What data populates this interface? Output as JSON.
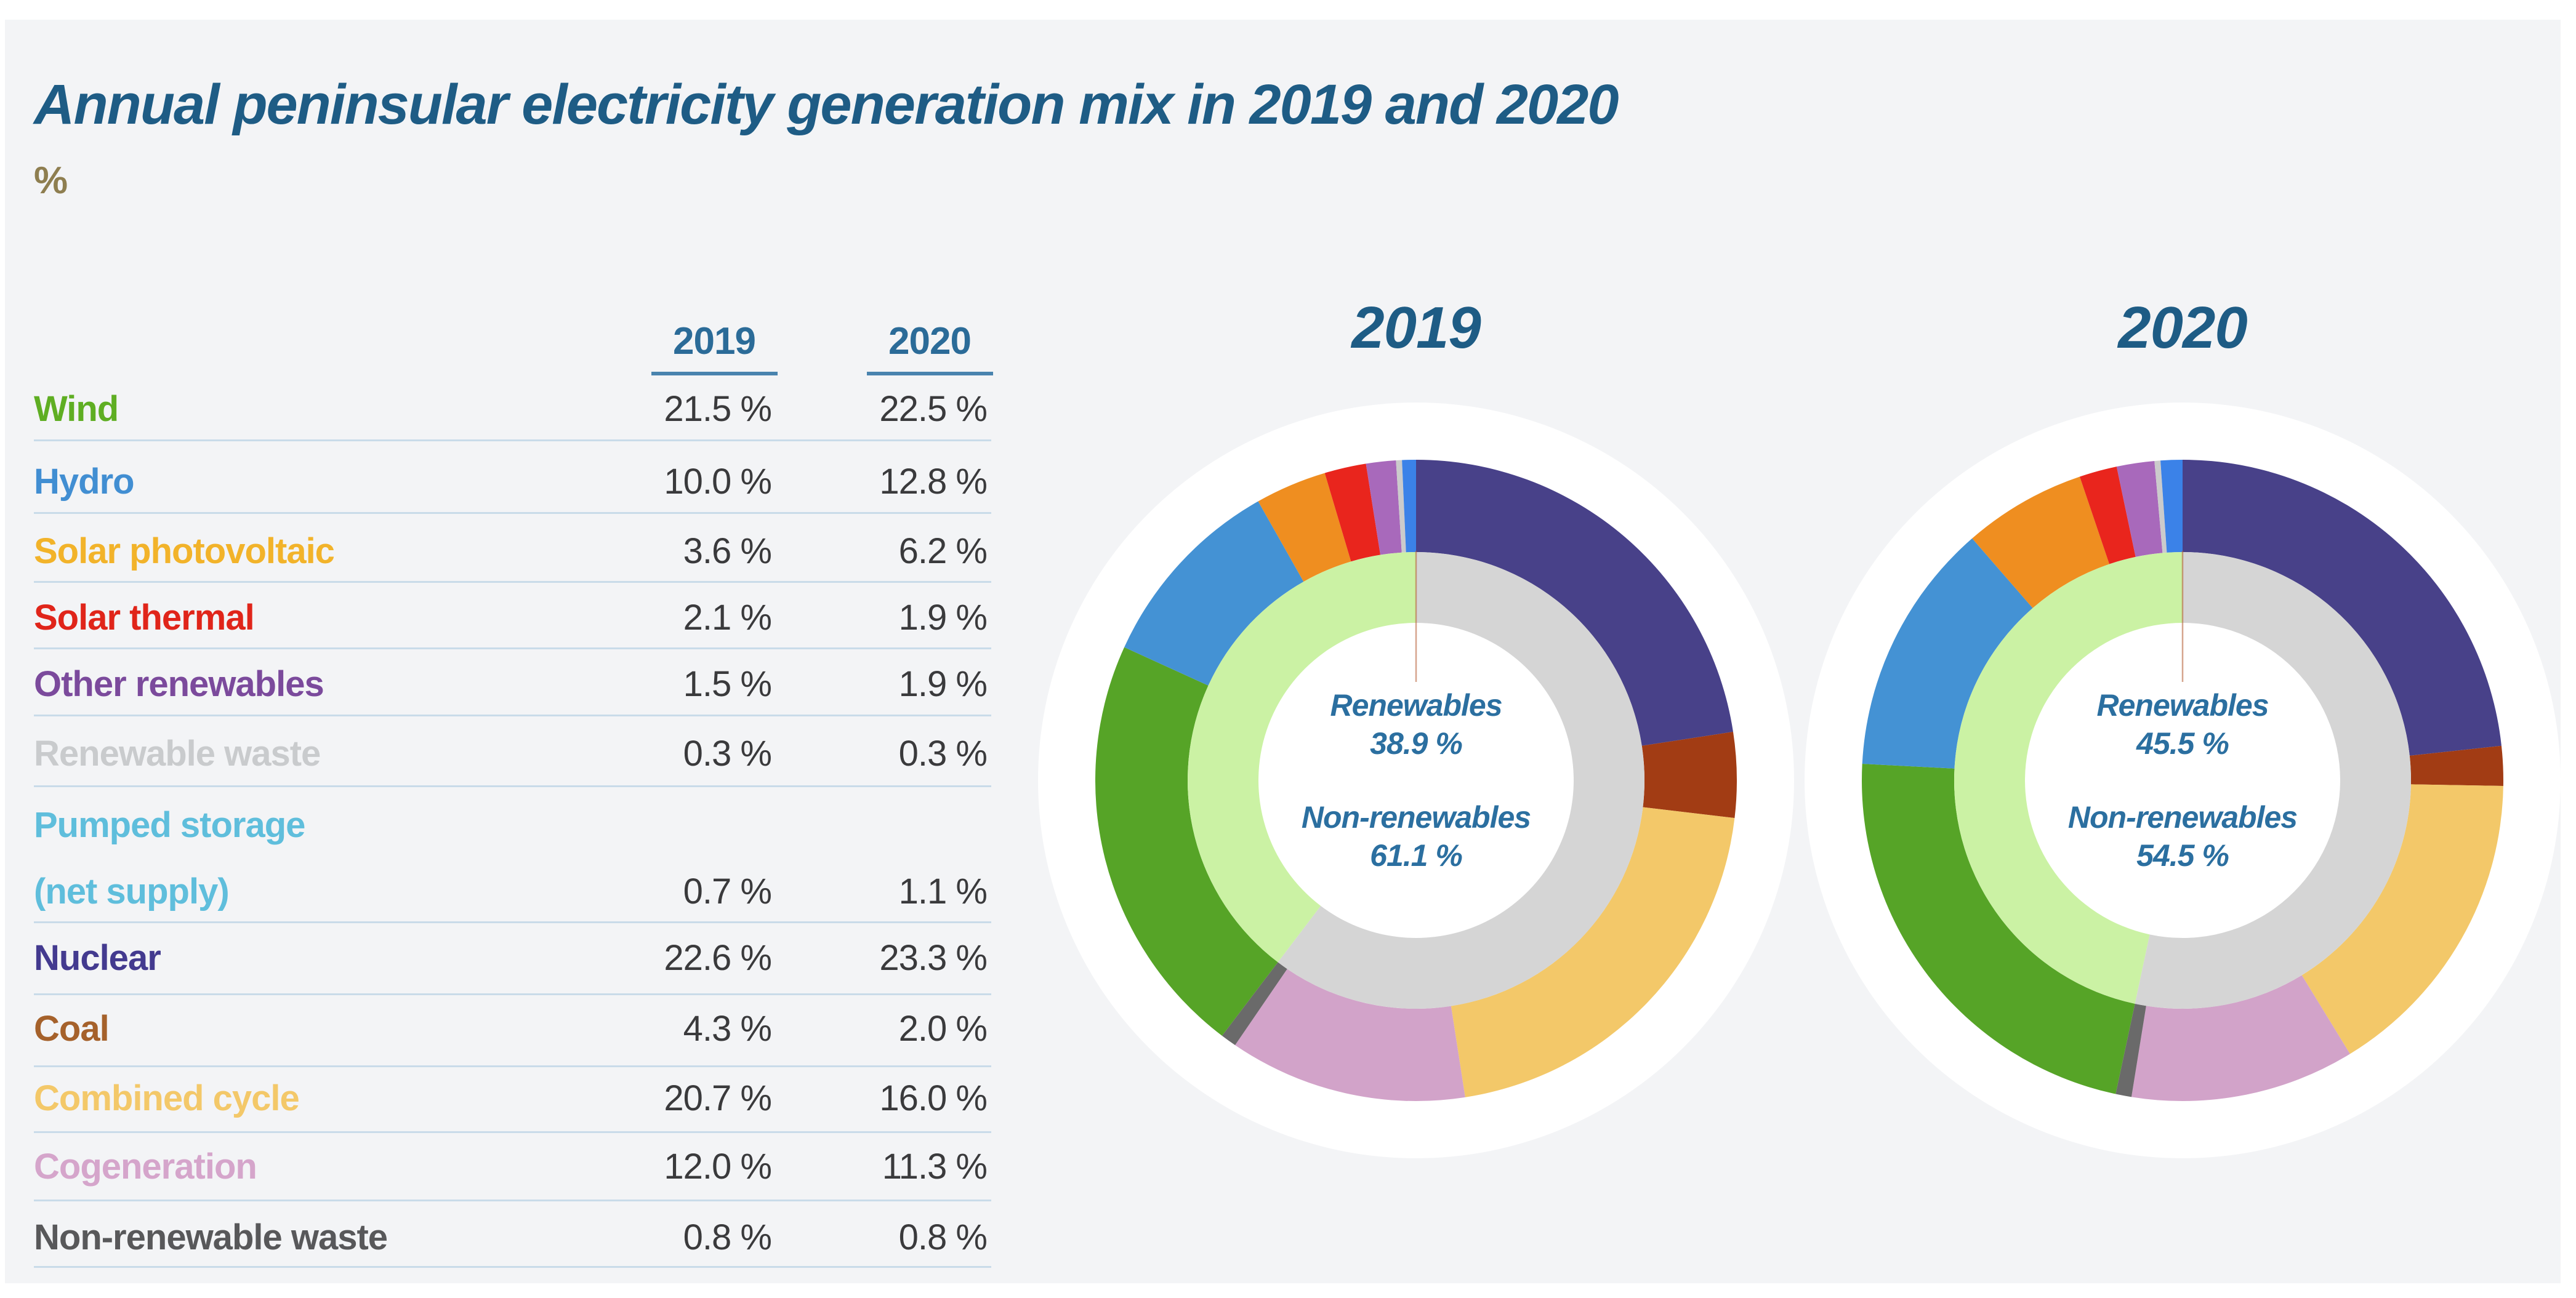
{
  "title": "Annual peninsular electricity generation mix in 2019 and 2020",
  "unit_label": "%",
  "colors": {
    "panel_bg": "#F3F4F6",
    "title_blue": "#1E5C85",
    "header_blue": "#2B6B98",
    "header_underline": "#4983AE",
    "value_text": "#3A3A3C",
    "separator": "#C9DBE9",
    "unit_label": "#8E7E50",
    "center_text": "#2B6FA0",
    "inner_ring_renewables": "#CBF2A4",
    "inner_ring_non_renewables": "#D5D5D5",
    "donut_backing": "#FFFFFF"
  },
  "table": {
    "col_headers": [
      "2019",
      "2020"
    ],
    "rows": [
      {
        "label": "Wind",
        "label_line2": "",
        "label_color": "#5FAE23",
        "values": [
          "21.5 %",
          "22.5 %"
        ]
      },
      {
        "label": "Hydro",
        "label_line2": "",
        "label_color": "#418ED2",
        "values": [
          "10.0 %",
          "12.8 %"
        ]
      },
      {
        "label": "Solar photovoltaic",
        "label_line2": "",
        "label_color": "#F2B32A",
        "values": [
          "3.6 %",
          "6.2 %"
        ]
      },
      {
        "label": "Solar thermal",
        "label_line2": "",
        "label_color": "#E0251A",
        "values": [
          "2.1 %",
          "1.9 %"
        ]
      },
      {
        "label": "Other renewables",
        "label_line2": "",
        "label_color": "#7B4A9C",
        "values": [
          "1.5 %",
          "1.9 %"
        ]
      },
      {
        "label": "Renewable waste",
        "label_line2": "",
        "label_color": "#C9CBCD",
        "values": [
          "0.3 %",
          "0.3 %"
        ]
      },
      {
        "label": "Pumped storage",
        "label_line2": "(net supply)",
        "label_color": "#5FBEDC",
        "values": [
          "0.7 %",
          "1.1 %"
        ]
      },
      {
        "label": "Nuclear",
        "label_line2": "",
        "label_color": "#433A8F",
        "values": [
          "22.6 %",
          "23.3 %"
        ]
      },
      {
        "label": "Coal",
        "label_line2": "",
        "label_color": "#A5612B",
        "values": [
          "4.3 %",
          "2.0 %"
        ]
      },
      {
        "label": "Combined cycle",
        "label_line2": "",
        "label_color": "#F3C869",
        "values": [
          "20.7 %",
          "16.0 %"
        ]
      },
      {
        "label": "Cogeneration",
        "label_line2": "",
        "label_color": "#D5A5CB",
        "values": [
          "12.0 %",
          "11.3 %"
        ]
      },
      {
        "label": "Non-renewable waste",
        "label_line2": "",
        "label_color": "#58585A",
        "values": [
          "0.8 %",
          "0.8 %"
        ]
      }
    ]
  },
  "donuts": [
    {
      "title": "2019",
      "center_lines": [
        "Renewables",
        "38.9 %",
        "Non-renewables",
        "61.1 %"
      ]
    },
    {
      "title": "2020",
      "center_lines": [
        "Renewables",
        "45.5 %",
        "Non-renewables",
        "54.5 %"
      ]
    }
  ],
  "chart_data": [
    {
      "type": "table",
      "title": "Annual peninsular electricity generation mix in 2019 and 2020",
      "unit": "%",
      "columns": [
        "2019",
        "2020"
      ],
      "rows": [
        {
          "label": "Wind",
          "2019": 21.5,
          "2020": 22.5
        },
        {
          "label": "Hydro",
          "2019": 10.0,
          "2020": 12.8
        },
        {
          "label": "Solar photovoltaic",
          "2019": 3.6,
          "2020": 6.2
        },
        {
          "label": "Solar thermal",
          "2019": 2.1,
          "2020": 1.9
        },
        {
          "label": "Other renewables",
          "2019": 1.5,
          "2020": 1.9
        },
        {
          "label": "Renewable waste",
          "2019": 0.3,
          "2020": 0.3
        },
        {
          "label": "Pumped storage (net supply)",
          "2019": 0.7,
          "2020": 1.1
        },
        {
          "label": "Nuclear",
          "2019": 22.6,
          "2020": 23.3
        },
        {
          "label": "Coal",
          "2019": 4.3,
          "2020": 2.0
        },
        {
          "label": "Combined cycle",
          "2019": 20.7,
          "2020": 16.0
        },
        {
          "label": "Cogeneration",
          "2019": 12.0,
          "2020": 11.3
        },
        {
          "label": "Non-renewable waste",
          "2019": 0.8,
          "2020": 0.8
        }
      ]
    },
    {
      "type": "pie",
      "title": "2019",
      "start": "12 o'clock",
      "direction": "clockwise",
      "labels": [
        "Nuclear",
        "Coal",
        "Combined cycle",
        "Cogeneration",
        "Non-renewable waste",
        "Wind",
        "Hydro",
        "Solar photovoltaic",
        "Solar thermal",
        "Other renewables",
        "Renewable waste",
        "Pumped storage (net supply)"
      ],
      "values": [
        22.6,
        4.3,
        20.7,
        12.0,
        0.8,
        21.5,
        10.0,
        3.6,
        2.1,
        1.5,
        0.3,
        0.7
      ],
      "colors": [
        "#484189",
        "#A23C14",
        "#F3C869",
        "#D2A3C9",
        "#6A6A6A",
        "#56A427",
        "#4492D4",
        "#EF8E20",
        "#E9251D",
        "#A869BB",
        "#CBCBCB",
        "#3B82E8"
      ],
      "inner_ring": {
        "Non-renewables": 61.1,
        "Renewables": 38.9
      }
    },
    {
      "type": "pie",
      "title": "2020",
      "start": "12 o'clock",
      "direction": "clockwise",
      "labels": [
        "Nuclear",
        "Coal",
        "Combined cycle",
        "Cogeneration",
        "Non-renewable waste",
        "Wind",
        "Hydro",
        "Solar photovoltaic",
        "Solar thermal",
        "Other renewables",
        "Renewable waste",
        "Pumped storage (net supply)"
      ],
      "values": [
        23.3,
        2.0,
        16.0,
        11.3,
        0.8,
        22.5,
        12.8,
        6.2,
        1.9,
        1.9,
        0.3,
        1.1
      ],
      "colors": [
        "#484189",
        "#A23C14",
        "#F3C869",
        "#D2A3C9",
        "#6A6A6A",
        "#56A427",
        "#4492D4",
        "#EF8E20",
        "#E9251D",
        "#A869BB",
        "#CBCBCB",
        "#3B82E8"
      ],
      "inner_ring": {
        "Non-renewables": 54.5,
        "Renewables": 45.5
      }
    }
  ]
}
